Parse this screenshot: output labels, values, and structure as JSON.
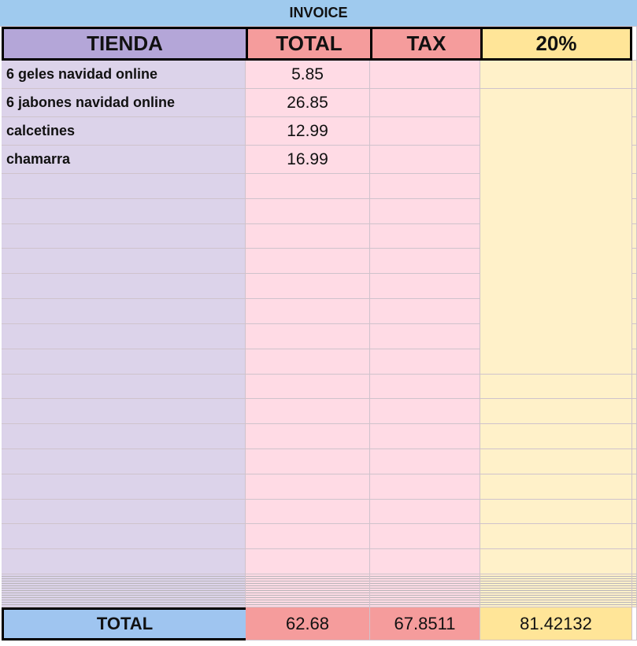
{
  "header": {
    "title": "INVOICE"
  },
  "table": {
    "columns": [
      "TIENDA",
      "TOTAL",
      "TAX",
      "20%"
    ],
    "rows": [
      [
        "6 geles navidad online",
        5.85
      ],
      [
        "6 jabones navidad online",
        26.85
      ],
      [
        "calcetines",
        12.99
      ],
      [
        "chamarra",
        16.99
      ]
    ],
    "totals": [
      "TOTAL",
      62.68,
      67.8511,
      81.42132
    ]
  }
}
